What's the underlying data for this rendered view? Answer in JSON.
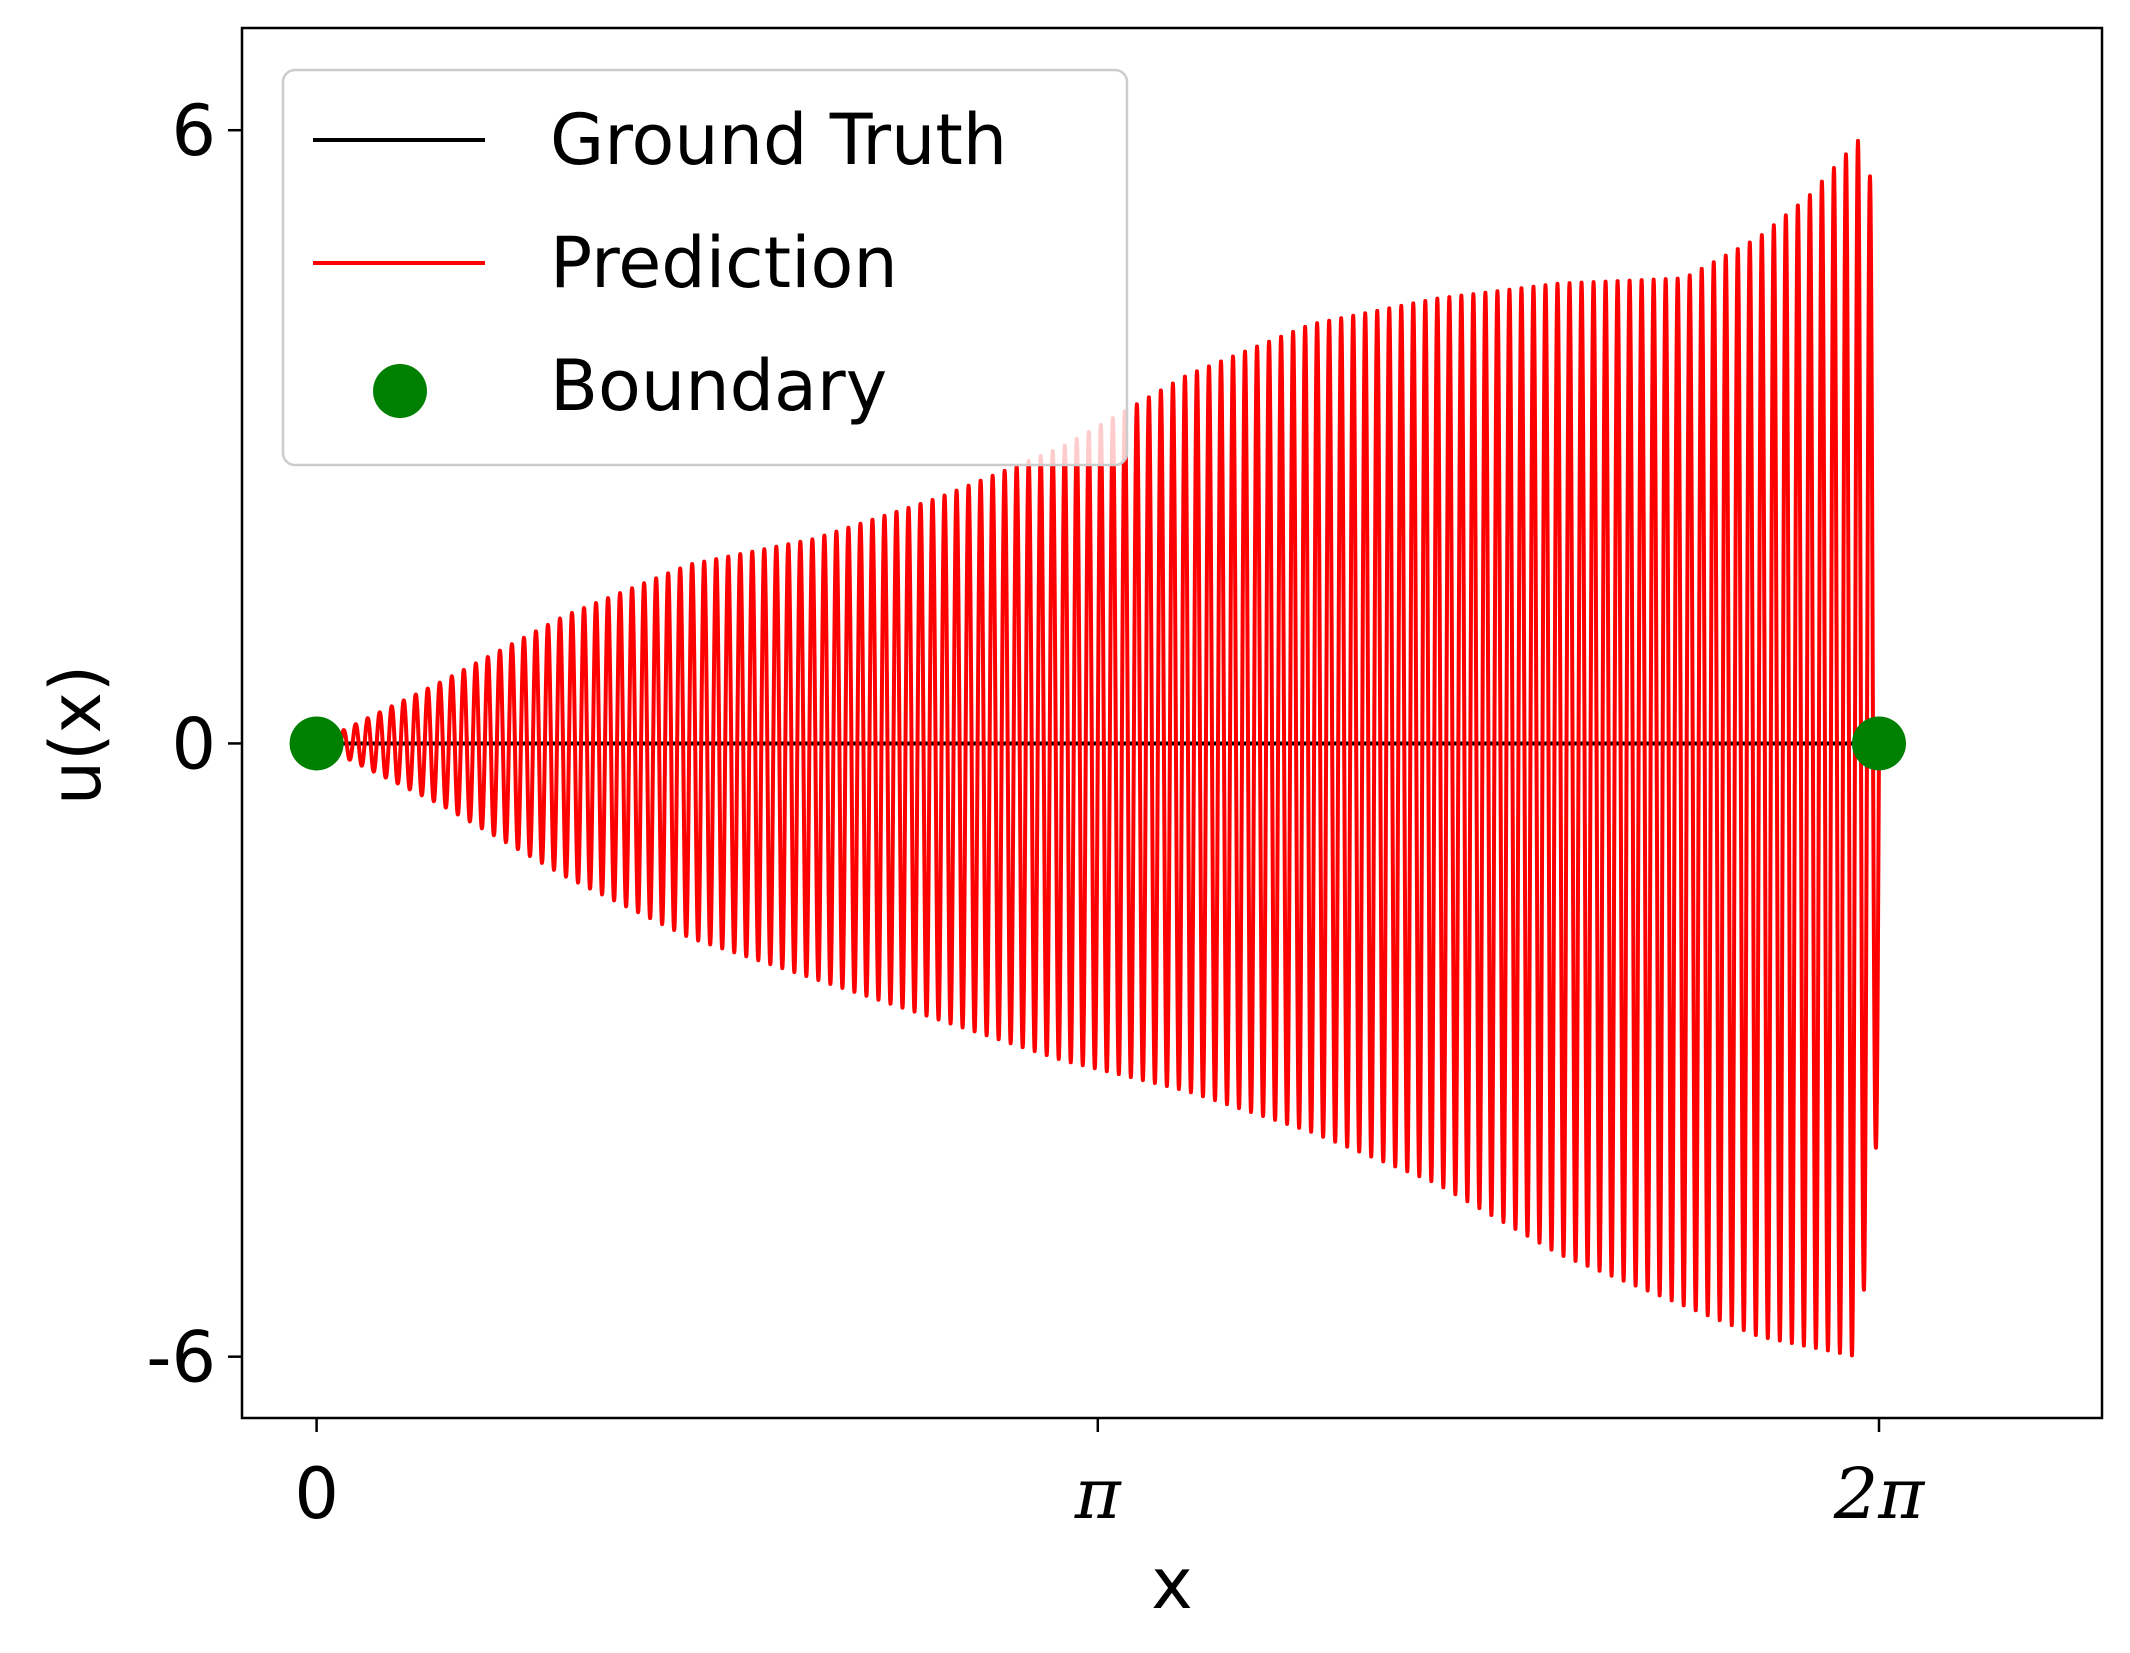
{
  "chart_data": {
    "type": "line",
    "title": "",
    "xlabel": "x",
    "ylabel": "u(x)",
    "xlim": [
      -0.3,
      7.18
    ],
    "ylim": [
      -6.6,
      7.0
    ],
    "x_ticks": [
      {
        "value": 0,
        "label": "0"
      },
      {
        "value": 3.14159,
        "label": "π"
      },
      {
        "value": 6.28319,
        "label": "2π"
      }
    ],
    "y_ticks": [
      {
        "value": 6,
        "label": "6"
      },
      {
        "value": 0,
        "label": "0"
      },
      {
        "value": -6,
        "label": "-6"
      }
    ],
    "grid": false,
    "legend": {
      "position": "top-left",
      "entries": [
        {
          "label": "Ground Truth",
          "kind": "line",
          "color": "#000000"
        },
        {
          "label": "Prediction",
          "kind": "line",
          "color": "#ff0000"
        },
        {
          "label": "Boundary",
          "kind": "marker",
          "color": "#008000"
        }
      ]
    },
    "series": [
      {
        "name": "Ground Truth",
        "color": "#000000",
        "description_hidden": false,
        "x": [
          0,
          6.28319
        ],
        "y": [
          0,
          0
        ]
      },
      {
        "name": "Prediction",
        "color": "#ff0000",
        "oscillation": {
          "x_start": 0,
          "x_end": 6.28319,
          "cycles": 130,
          "envelope": {
            "x": [
              0,
              0.5,
              1.0,
              1.5,
              2.0,
              2.5,
              3.0,
              3.5,
              4.0,
              4.5,
              5.0,
              5.5,
              5.8,
              6.0,
              6.2,
              6.28
            ],
            "upper": [
              0,
              0.6,
              1.25,
              1.75,
              2.0,
              2.4,
              2.9,
              3.6,
              4.1,
              4.35,
              4.5,
              4.55,
              4.95,
              5.35,
              5.9,
              5.3
            ],
            "lower": [
              0,
              -0.6,
              -1.3,
              -1.9,
              -2.3,
              -2.7,
              -3.1,
              -3.4,
              -3.8,
              -4.3,
              -5.0,
              -5.5,
              -5.8,
              -5.9,
              -6.0,
              -3.7
            ]
          }
        }
      },
      {
        "name": "Boundary",
        "type": "scatter",
        "color": "#008000",
        "x": [
          0,
          6.28319
        ],
        "y": [
          0,
          0
        ]
      }
    ]
  }
}
